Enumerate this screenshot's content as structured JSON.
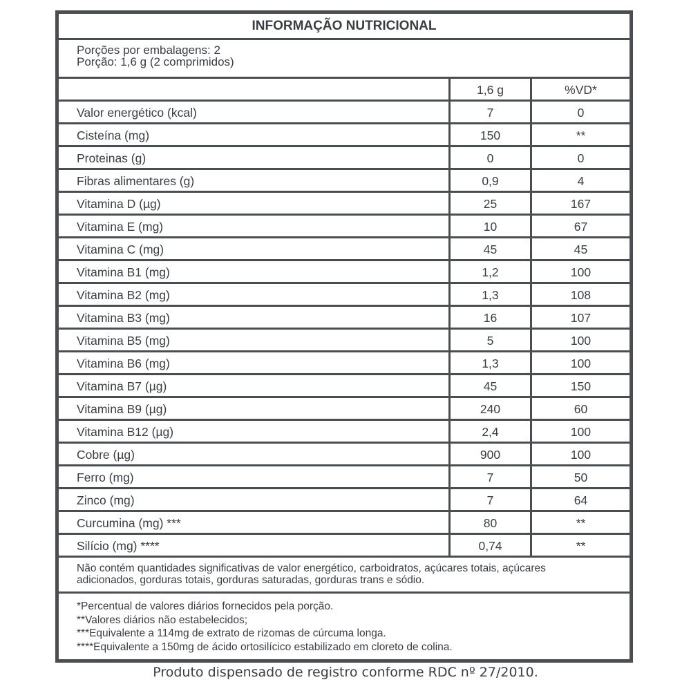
{
  "title": "INFORMAÇÃO NUTRICIONAL",
  "portions": [
    "Porções por embalagens: 2",
    "Porção: 1,6 g (2 comprimidos)"
  ],
  "header": {
    "name": "",
    "amount": "1,6 g",
    "vd": "%VD*"
  },
  "rows": [
    {
      "name": "Valor energético (kcal)",
      "amount": "7",
      "vd": "0"
    },
    {
      "name": "Cisteína (mg)",
      "amount": "150",
      "vd": "**"
    },
    {
      "name": "Proteinas (g)",
      "amount": "0",
      "vd": "0"
    },
    {
      "name": "Fibras alimentares (g)",
      "amount": "0,9",
      "vd": "4"
    },
    {
      "name": "Vitamina D (µg)",
      "amount": "25",
      "vd": "167"
    },
    {
      "name": "Vitamina E (mg)",
      "amount": "10",
      "vd": "67"
    },
    {
      "name": "Vitamina C (mg)",
      "amount": "45",
      "vd": "45"
    },
    {
      "name": "Vitamina B1 (mg)",
      "amount": "1,2",
      "vd": "100"
    },
    {
      "name": "Vitamina B2 (mg)",
      "amount": "1,3",
      "vd": "108"
    },
    {
      "name": "Vitamina B3 (mg)",
      "amount": "16",
      "vd": "107"
    },
    {
      "name": "Vitamina B5 (mg)",
      "amount": "5",
      "vd": "100"
    },
    {
      "name": "Vitamina B6 (mg)",
      "amount": "1,3",
      "vd": "100"
    },
    {
      "name": "Vitamina B7 (µg)",
      "amount": "45",
      "vd": "150"
    },
    {
      "name": "Vitamina B9 (µg)",
      "amount": "240",
      "vd": "60"
    },
    {
      "name": "Vitamina B12 (µg)",
      "amount": "2,4",
      "vd": "100"
    },
    {
      "name": "Cobre (µg)",
      "amount": "900",
      "vd": "100"
    },
    {
      "name": "Ferro (mg)",
      "amount": "7",
      "vd": "50"
    },
    {
      "name": "Zinco (mg)",
      "amount": "7",
      "vd": "64"
    },
    {
      "name": "Curcumina (mg) ***",
      "amount": "80",
      "vd": "**"
    },
    {
      "name": "Silício (mg) ****",
      "amount": "0,74",
      "vd": "**"
    }
  ],
  "note": [
    "Não contém quantidades significativas de valor energético, carboidratos, açúcares totais, açúcares",
    "adicionados, gorduras totais, gorduras saturadas, gorduras trans e sódio."
  ],
  "footnotes": [
    "*Percentual de valores diários fornecidos pela porção.",
    "**Valores diários não estabelecidos;",
    "***Equivalente a 114mg de extrato de rizomas de cúrcuma longa.",
    "****Equivalente a 150mg de ácido ortosilícico estabilizado em cloreto de colina."
  ],
  "bottom_text": "Produto dispensado de registro conforme RDC nº 27/2010."
}
